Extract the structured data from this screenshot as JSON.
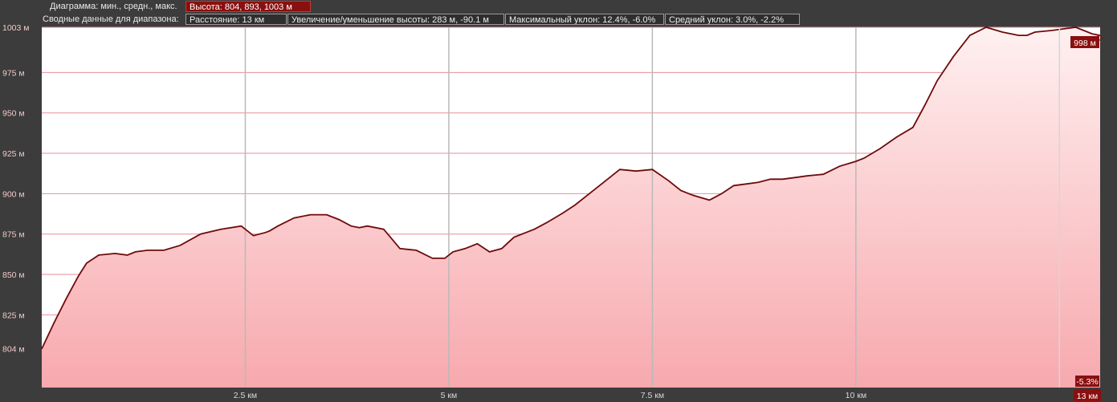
{
  "header": {
    "chart_label": "Диаграмма: мин., средн., макс.",
    "elevation_stat": "Высота: 804, 893, 1003 м",
    "summary_label": "Сводные данные для диапазона:",
    "distance": "Расстояние: 13 км",
    "gain_loss": "Увеличение/уменьшение высоты: 283 м, -90.1 м",
    "max_grade": "Максимальный уклон: 12.4%, -6.0%",
    "avg_grade": "Средний уклон: 3.0%, -2.2%"
  },
  "cursor": {
    "elevation_label": "998 м",
    "grade_label": "-5.3%",
    "distance_label": "13 км"
  },
  "colors": {
    "background": "#3c3c3c",
    "plot_bg": "#ffffff",
    "fill_top": "#fff0f0",
    "fill_bottom": "#f7a9ae",
    "line": "#6e0a0a",
    "accent": "#8a0f0f"
  },
  "chart_data": {
    "type": "area",
    "title": "",
    "xlabel": "",
    "ylabel": "",
    "xlim": [
      0,
      13
    ],
    "ylim": [
      780,
      1003
    ],
    "grid": true,
    "y_tick_labels": [
      "1003 м",
      "975 м",
      "950 м",
      "925 м",
      "900 м",
      "875 м",
      "850 м",
      "825 м",
      "804 м"
    ],
    "y_tick_values": [
      1003,
      975,
      950,
      925,
      900,
      875,
      850,
      825,
      804
    ],
    "x_tick_labels": [
      "2.5 км",
      "5 км",
      "7.5 км",
      "10 км"
    ],
    "x_tick_values": [
      2.5,
      5,
      7.5,
      10
    ],
    "x": [
      0,
      0.15,
      0.3,
      0.45,
      0.55,
      0.7,
      0.9,
      1.05,
      1.15,
      1.3,
      1.5,
      1.7,
      1.95,
      2.2,
      2.45,
      2.6,
      2.75,
      2.8,
      2.9,
      3.1,
      3.3,
      3.5,
      3.65,
      3.8,
      3.9,
      4.0,
      4.2,
      4.4,
      4.6,
      4.8,
      4.95,
      5.05,
      5.2,
      5.35,
      5.5,
      5.65,
      5.8,
      5.95,
      6.05,
      6.2,
      6.4,
      6.55,
      6.7,
      6.9,
      7.1,
      7.3,
      7.5,
      7.7,
      7.85,
      8.0,
      8.2,
      8.35,
      8.5,
      8.65,
      8.8,
      8.95,
      9.1,
      9.25,
      9.4,
      9.6,
      9.8,
      10.0,
      10.1,
      10.3,
      10.5,
      10.7,
      10.85,
      11.0,
      11.2,
      11.4,
      11.6,
      11.8,
      12.0,
      12.1,
      12.2,
      12.4,
      12.55,
      12.7,
      12.8,
      12.9,
      13.0
    ],
    "y": [
      804,
      820,
      835,
      849,
      857,
      862,
      863,
      862,
      864,
      865,
      865,
      868,
      875,
      878,
      880,
      874,
      876,
      877,
      880,
      885,
      887,
      887,
      884,
      880,
      879,
      880,
      878,
      866,
      865,
      860,
      860,
      864,
      866,
      869,
      864,
      866,
      873,
      876,
      878,
      882,
      888,
      893,
      899,
      907,
      915,
      914,
      915,
      908,
      902,
      899,
      896,
      900,
      905,
      906,
      907,
      909,
      909,
      910,
      911,
      912,
      917,
      920,
      922,
      928,
      935,
      941,
      955,
      970,
      985,
      998,
      1003,
      1000,
      998,
      998,
      1000,
      1001,
      1002,
      1003,
      1001,
      999,
      998
    ]
  }
}
